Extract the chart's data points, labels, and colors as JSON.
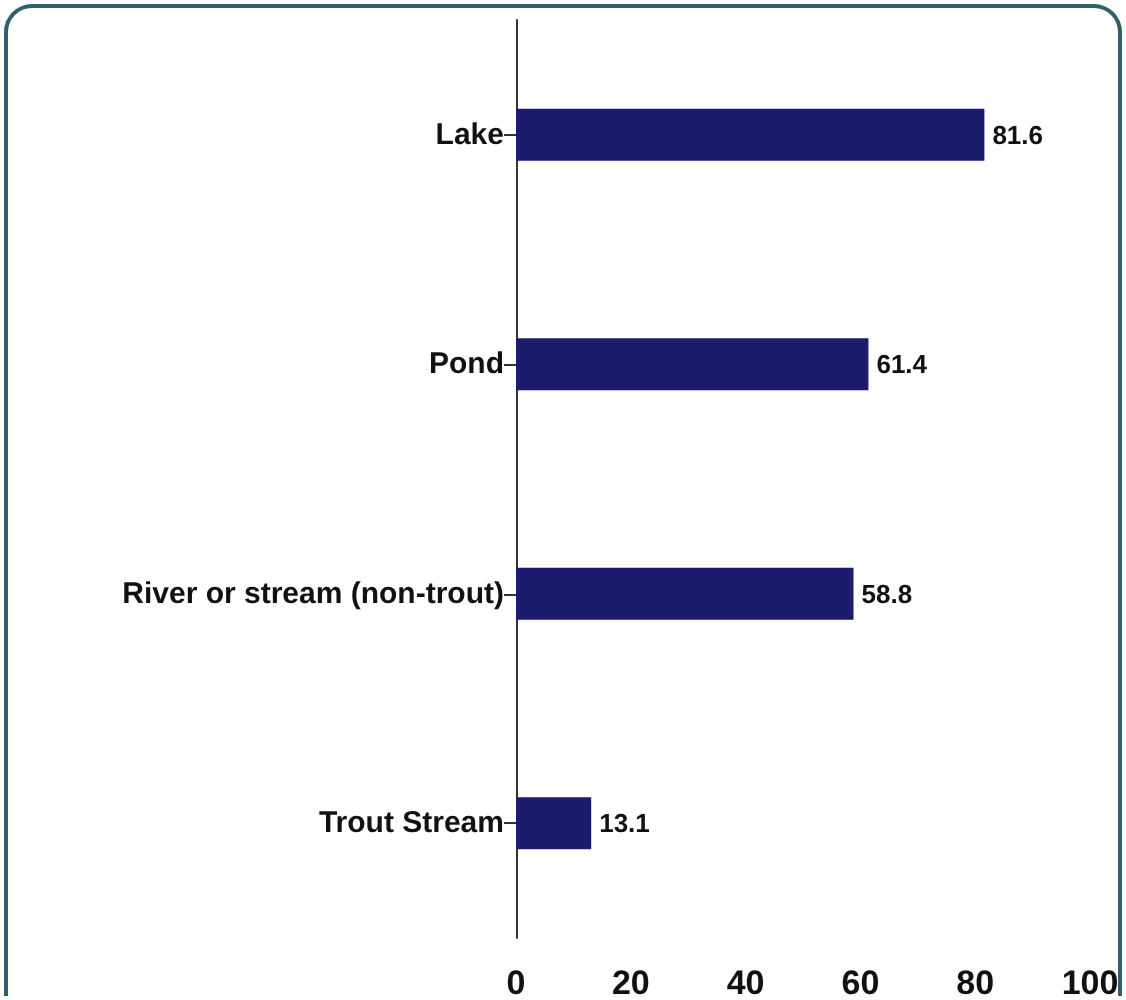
{
  "chart_data": {
    "type": "bar",
    "orientation": "horizontal",
    "categories": [
      "Lake",
      "Pond",
      "River or stream (non-trout)",
      "Trout Stream"
    ],
    "values": [
      81.6,
      61.4,
      58.8,
      13.1
    ],
    "color": "#1c1c6e",
    "xlim": [
      0,
      100
    ],
    "xticks": [
      0,
      20,
      40,
      60,
      80,
      100
    ],
    "grid": false,
    "data_labels": true
  }
}
